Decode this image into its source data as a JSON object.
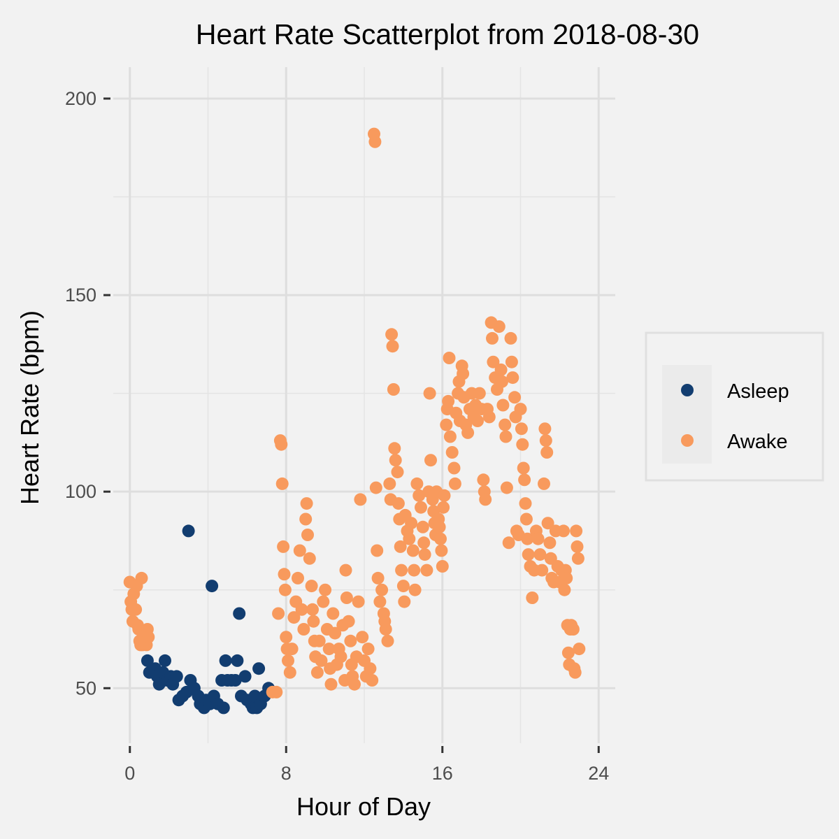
{
  "chart_data": {
    "type": "scatter",
    "title": "Heart Rate Scatterplot from 2018-08-30",
    "xlabel": "Hour of Day",
    "ylabel": "Heart Rate (bpm)",
    "xlim": [
      -0.85,
      24.85
    ],
    "ylim": [
      36,
      208
    ],
    "x_ticks": [
      0,
      8,
      16,
      24
    ],
    "x_tick_labels": [
      "0",
      "8",
      "16",
      "24"
    ],
    "y_ticks": [
      50,
      100,
      150,
      200
    ],
    "y_tick_labels": [
      "50",
      "100",
      "150",
      "200"
    ],
    "grid": true,
    "legend_position": "right",
    "series": [
      {
        "name": "Asleep",
        "color": "#123d70",
        "points": [
          [
            0.9,
            57
          ],
          [
            1.0,
            54
          ],
          [
            1.3,
            55
          ],
          [
            1.4,
            53
          ],
          [
            1.5,
            51
          ],
          [
            1.7,
            54
          ],
          [
            1.8,
            57
          ],
          [
            1.9,
            52
          ],
          [
            2.1,
            53
          ],
          [
            2.2,
            51
          ],
          [
            2.4,
            53
          ],
          [
            2.5,
            47
          ],
          [
            2.7,
            48
          ],
          [
            2.9,
            49
          ],
          [
            3.0,
            90
          ],
          [
            3.1,
            52
          ],
          [
            3.3,
            50
          ],
          [
            3.5,
            48
          ],
          [
            3.6,
            46
          ],
          [
            3.8,
            45
          ],
          [
            3.9,
            47
          ],
          [
            4.1,
            46
          ],
          [
            4.2,
            76
          ],
          [
            4.3,
            48
          ],
          [
            4.5,
            46
          ],
          [
            4.7,
            52
          ],
          [
            4.8,
            45
          ],
          [
            4.9,
            57
          ],
          [
            5.0,
            52
          ],
          [
            5.2,
            52
          ],
          [
            5.4,
            52
          ],
          [
            5.5,
            57
          ],
          [
            5.6,
            69
          ],
          [
            5.7,
            48
          ],
          [
            5.9,
            53
          ],
          [
            6.0,
            47
          ],
          [
            6.2,
            46
          ],
          [
            6.3,
            45
          ],
          [
            6.4,
            48
          ],
          [
            6.5,
            45
          ],
          [
            6.6,
            55
          ],
          [
            6.7,
            46
          ],
          [
            6.9,
            48
          ],
          [
            7.1,
            50
          ]
        ]
      },
      {
        "name": "Awake",
        "color": "#f89a5d",
        "points": [
          [
            0.0,
            77
          ],
          [
            0.05,
            72
          ],
          [
            0.1,
            70
          ],
          [
            0.15,
            67
          ],
          [
            0.2,
            74
          ],
          [
            0.3,
            70
          ],
          [
            0.35,
            76
          ],
          [
            0.4,
            66
          ],
          [
            0.45,
            65
          ],
          [
            0.5,
            62
          ],
          [
            0.55,
            61
          ],
          [
            0.6,
            78
          ],
          [
            0.65,
            61
          ],
          [
            0.7,
            64
          ],
          [
            0.75,
            64
          ],
          [
            0.8,
            63
          ],
          [
            0.85,
            61
          ],
          [
            0.9,
            65
          ],
          [
            0.95,
            63
          ],
          [
            7.3,
            49
          ],
          [
            7.5,
            49
          ],
          [
            7.6,
            69
          ],
          [
            7.7,
            113
          ],
          [
            7.75,
            112
          ],
          [
            7.8,
            102
          ],
          [
            7.85,
            86
          ],
          [
            7.9,
            79
          ],
          [
            7.95,
            75
          ],
          [
            8.0,
            63
          ],
          [
            8.05,
            60
          ],
          [
            8.1,
            57
          ],
          [
            8.2,
            54
          ],
          [
            8.3,
            60
          ],
          [
            8.4,
            68
          ],
          [
            8.5,
            72
          ],
          [
            8.6,
            78
          ],
          [
            8.7,
            85
          ],
          [
            8.8,
            70
          ],
          [
            8.9,
            65
          ],
          [
            9.0,
            93
          ],
          [
            9.05,
            97
          ],
          [
            9.1,
            89
          ],
          [
            9.2,
            83
          ],
          [
            9.3,
            76
          ],
          [
            9.35,
            70
          ],
          [
            9.4,
            67
          ],
          [
            9.45,
            62
          ],
          [
            9.5,
            58
          ],
          [
            9.6,
            54
          ],
          [
            9.7,
            62
          ],
          [
            9.8,
            57
          ],
          [
            9.9,
            72
          ],
          [
            10.0,
            75
          ],
          [
            10.1,
            65
          ],
          [
            10.2,
            60
          ],
          [
            10.25,
            55
          ],
          [
            10.3,
            51
          ],
          [
            10.4,
            69
          ],
          [
            10.5,
            64
          ],
          [
            10.6,
            56
          ],
          [
            10.7,
            60
          ],
          [
            10.8,
            58
          ],
          [
            10.9,
            66
          ],
          [
            11.0,
            52
          ],
          [
            11.05,
            80
          ],
          [
            11.1,
            73
          ],
          [
            11.2,
            67
          ],
          [
            11.3,
            62
          ],
          [
            11.35,
            56
          ],
          [
            11.4,
            53
          ],
          [
            11.5,
            51
          ],
          [
            11.6,
            58
          ],
          [
            11.7,
            72
          ],
          [
            11.8,
            98
          ],
          [
            11.9,
            63
          ],
          [
            12.0,
            57
          ],
          [
            12.1,
            53
          ],
          [
            12.2,
            60
          ],
          [
            12.3,
            55
          ],
          [
            12.4,
            52
          ],
          [
            12.5,
            191
          ],
          [
            12.55,
            189
          ],
          [
            12.6,
            101
          ],
          [
            12.65,
            85
          ],
          [
            12.7,
            78
          ],
          [
            12.8,
            72
          ],
          [
            12.9,
            75
          ],
          [
            13.0,
            69
          ],
          [
            13.05,
            67
          ],
          [
            13.1,
            65
          ],
          [
            13.2,
            62
          ],
          [
            13.3,
            102
          ],
          [
            13.35,
            98
          ],
          [
            13.4,
            140
          ],
          [
            13.45,
            137
          ],
          [
            13.5,
            126
          ],
          [
            13.55,
            111
          ],
          [
            13.6,
            108
          ],
          [
            13.7,
            105
          ],
          [
            13.75,
            97
          ],
          [
            13.8,
            93
          ],
          [
            13.85,
            86
          ],
          [
            13.9,
            80
          ],
          [
            14.0,
            76
          ],
          [
            14.05,
            72
          ],
          [
            14.1,
            94
          ],
          [
            14.2,
            90
          ],
          [
            14.3,
            88
          ],
          [
            14.4,
            92
          ],
          [
            14.5,
            85
          ],
          [
            14.55,
            80
          ],
          [
            14.6,
            75
          ],
          [
            14.7,
            102
          ],
          [
            14.8,
            99
          ],
          [
            14.9,
            96
          ],
          [
            15.0,
            91
          ],
          [
            15.05,
            87
          ],
          [
            15.1,
            84
          ],
          [
            15.2,
            80
          ],
          [
            15.3,
            100
          ],
          [
            15.35,
            125
          ],
          [
            15.4,
            108
          ],
          [
            15.5,
            98
          ],
          [
            15.55,
            95
          ],
          [
            15.6,
            92
          ],
          [
            15.65,
            89
          ],
          [
            15.7,
            100
          ],
          [
            15.8,
            93
          ],
          [
            15.85,
            91
          ],
          [
            15.9,
            88
          ],
          [
            15.95,
            85
          ],
          [
            16.0,
            81
          ],
          [
            16.05,
            96
          ],
          [
            16.1,
            99
          ],
          [
            16.2,
            117
          ],
          [
            16.25,
            121
          ],
          [
            16.3,
            123
          ],
          [
            16.35,
            134
          ],
          [
            16.4,
            114
          ],
          [
            16.5,
            110
          ],
          [
            16.6,
            106
          ],
          [
            16.65,
            102
          ],
          [
            16.7,
            120
          ],
          [
            16.8,
            125
          ],
          [
            16.85,
            128
          ],
          [
            16.9,
            118
          ],
          [
            17.0,
            132
          ],
          [
            17.05,
            130
          ],
          [
            17.1,
            124
          ],
          [
            17.2,
            117
          ],
          [
            17.3,
            115
          ],
          [
            17.4,
            121
          ],
          [
            17.5,
            125
          ],
          [
            17.6,
            119
          ],
          [
            17.7,
            122
          ],
          [
            17.8,
            118
          ],
          [
            17.9,
            125
          ],
          [
            18.0,
            121
          ],
          [
            18.1,
            103
          ],
          [
            18.15,
            100
          ],
          [
            18.2,
            98
          ],
          [
            18.3,
            121
          ],
          [
            18.4,
            119
          ],
          [
            18.5,
            143
          ],
          [
            18.55,
            139
          ],
          [
            18.6,
            133
          ],
          [
            18.7,
            129
          ],
          [
            18.8,
            126
          ],
          [
            18.9,
            142
          ],
          [
            19.0,
            131
          ],
          [
            19.05,
            128
          ],
          [
            19.1,
            122
          ],
          [
            19.2,
            117
          ],
          [
            19.25,
            114
          ],
          [
            19.3,
            101
          ],
          [
            19.4,
            87
          ],
          [
            19.5,
            139
          ],
          [
            19.55,
            133
          ],
          [
            19.6,
            129
          ],
          [
            19.7,
            124
          ],
          [
            19.75,
            119
          ],
          [
            19.8,
            90
          ],
          [
            19.9,
            89
          ],
          [
            20.0,
            121
          ],
          [
            20.05,
            116
          ],
          [
            20.1,
            112
          ],
          [
            20.15,
            106
          ],
          [
            20.2,
            103
          ],
          [
            20.25,
            97
          ],
          [
            20.3,
            93
          ],
          [
            20.35,
            88
          ],
          [
            20.4,
            84
          ],
          [
            20.5,
            81
          ],
          [
            20.6,
            73
          ],
          [
            20.7,
            80
          ],
          [
            20.8,
            90
          ],
          [
            20.9,
            88
          ],
          [
            21.0,
            84
          ],
          [
            21.1,
            80
          ],
          [
            21.2,
            102
          ],
          [
            21.25,
            116
          ],
          [
            21.3,
            113
          ],
          [
            21.35,
            110
          ],
          [
            21.4,
            92
          ],
          [
            21.5,
            87
          ],
          [
            21.55,
            83
          ],
          [
            21.6,
            78
          ],
          [
            21.7,
            77
          ],
          [
            21.8,
            90
          ],
          [
            21.9,
            81
          ],
          [
            22.0,
            77
          ],
          [
            22.1,
            80
          ],
          [
            22.2,
            90
          ],
          [
            22.25,
            75
          ],
          [
            22.3,
            80
          ],
          [
            22.35,
            78
          ],
          [
            22.4,
            66
          ],
          [
            22.45,
            59
          ],
          [
            22.5,
            56
          ],
          [
            22.55,
            65
          ],
          [
            22.6,
            66
          ],
          [
            22.7,
            65
          ],
          [
            22.75,
            55
          ],
          [
            22.8,
            54
          ],
          [
            22.85,
            90
          ],
          [
            22.9,
            86
          ],
          [
            22.95,
            83
          ],
          [
            23.0,
            60
          ]
        ]
      }
    ]
  }
}
